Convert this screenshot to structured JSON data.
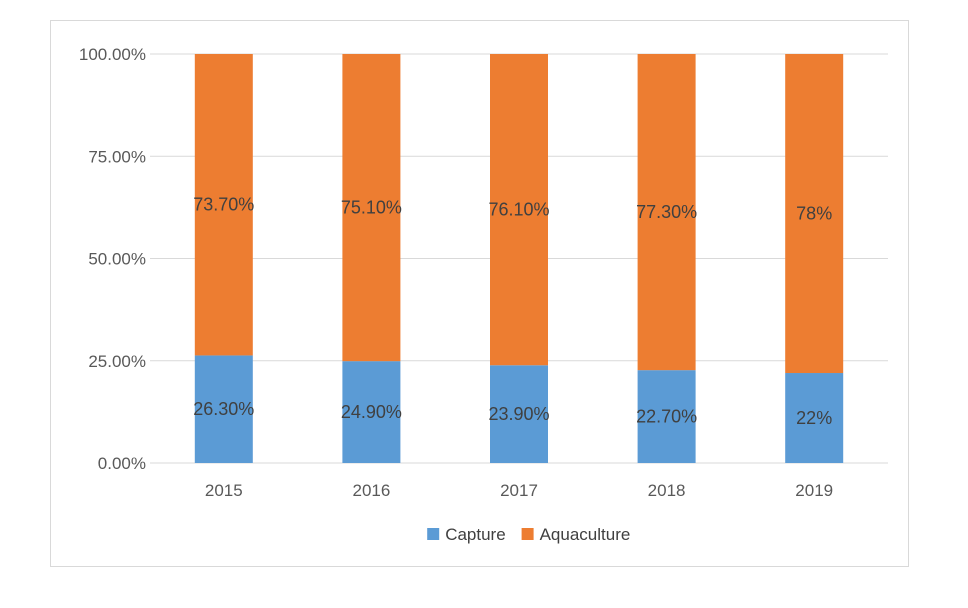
{
  "chart_data": {
    "type": "bar",
    "stacked": true,
    "categories": [
      "2015",
      "2016",
      "2017",
      "2018",
      "2019"
    ],
    "series": [
      {
        "name": "Capture",
        "color": "#5b9bd5",
        "values": [
          26.3,
          24.9,
          23.9,
          22.7,
          22.0
        ],
        "labels": [
          "26.30%",
          "24.90%",
          "23.90%",
          "22.70%",
          "22%"
        ]
      },
      {
        "name": "Aquaculture",
        "color": "#ed7d31",
        "values": [
          73.7,
          75.1,
          76.1,
          77.3,
          78.0
        ],
        "labels": [
          "73.70%",
          "75.10%",
          "76.10%",
          "77.30%",
          "78%"
        ]
      }
    ],
    "ylim": [
      0,
      100
    ],
    "yticks": [
      0,
      25,
      50,
      75,
      100
    ],
    "ytick_labels": [
      "0.00%",
      "25.00%",
      "50.00%",
      "75.00%",
      "100.00%"
    ],
    "grid": true,
    "legend_position": "bottom",
    "title": "",
    "xlabel": "",
    "ylabel": ""
  }
}
